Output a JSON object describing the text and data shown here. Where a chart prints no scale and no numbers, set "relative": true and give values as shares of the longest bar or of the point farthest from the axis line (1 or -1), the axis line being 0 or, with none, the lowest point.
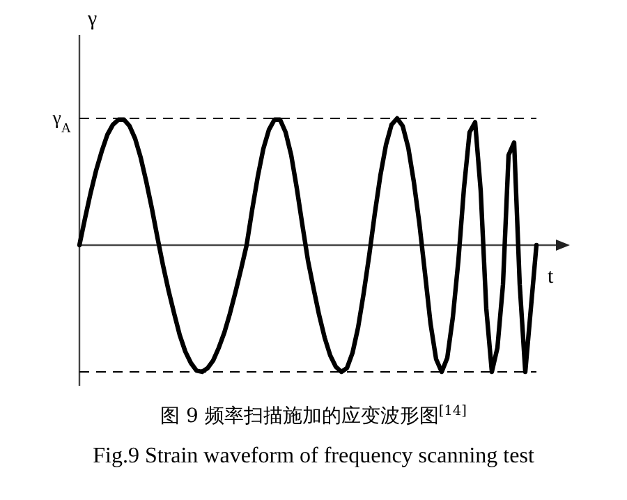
{
  "chart_data": {
    "type": "line",
    "relative": true,
    "color": "#000000",
    "line_style": "solid",
    "ylabel": "γ",
    "xlabel": "t",
    "title": "图 9  频率扫描施加的应变波形图$^{[14]}$",
    "subtitle": "Fig.9 Strain waveform of frequency scanning test",
    "ref_lines": [
      {
        "axis": "y",
        "value": 1,
        "label": "γ$_{A}$",
        "line_style": "dashed",
        "color": "#000000"
      },
      {
        "axis": "y",
        "value": -1,
        "line_style": "dashed",
        "color": "#000000"
      }
    ],
    "categories": [
      null,
      null,
      null,
      null,
      null,
      null,
      null,
      null,
      null,
      null,
      null,
      null,
      null,
      null,
      null,
      null,
      null,
      null,
      null,
      null,
      null,
      null,
      null,
      null,
      null,
      null,
      null,
      null,
      null,
      null,
      null,
      null,
      null,
      null,
      null,
      null,
      null,
      null,
      null,
      null,
      null,
      null,
      null,
      null,
      null,
      null,
      null,
      null,
      null,
      null,
      null,
      null,
      null,
      null,
      null,
      null,
      null,
      null,
      null,
      null,
      null,
      null,
      null,
      null,
      null,
      null,
      null,
      null,
      null,
      null,
      null,
      null,
      null,
      null,
      null,
      null,
      null,
      null,
      null,
      null,
      null,
      null,
      null
    ],
    "values": [
      0,
      0.21,
      0.41,
      0.59,
      0.74,
      0.87,
      0.95,
      0.99,
      0.99,
      0.94,
      0.84,
      0.69,
      0.5,
      0.29,
      0.06,
      -0.16,
      -0.36,
      -0.54,
      -0.71,
      -0.84,
      -0.93,
      -0.99,
      -1,
      -0.97,
      -0.91,
      -0.81,
      -0.69,
      -0.54,
      -0.37,
      -0.19,
      0,
      0.28,
      0.54,
      0.76,
      0.91,
      0.99,
      0.99,
      0.89,
      0.71,
      0.45,
      0.16,
      -0.12,
      -0.34,
      -0.55,
      -0.73,
      -0.87,
      -0.96,
      -1,
      -0.97,
      -0.85,
      -0.65,
      -0.38,
      -0.08,
      0.25,
      0.55,
      0.79,
      0.95,
      1,
      0.94,
      0.77,
      0.5,
      0.17,
      -0.22,
      -0.62,
      -0.9,
      -1,
      -0.89,
      -0.57,
      -0.12,
      0.45,
      0.89,
      0.97,
      0.43,
      -0.5,
      -1,
      -0.81,
      -0.31,
      0.71,
      0.81,
      -0.31,
      -1,
      -0.5,
      0
    ]
  }
}
